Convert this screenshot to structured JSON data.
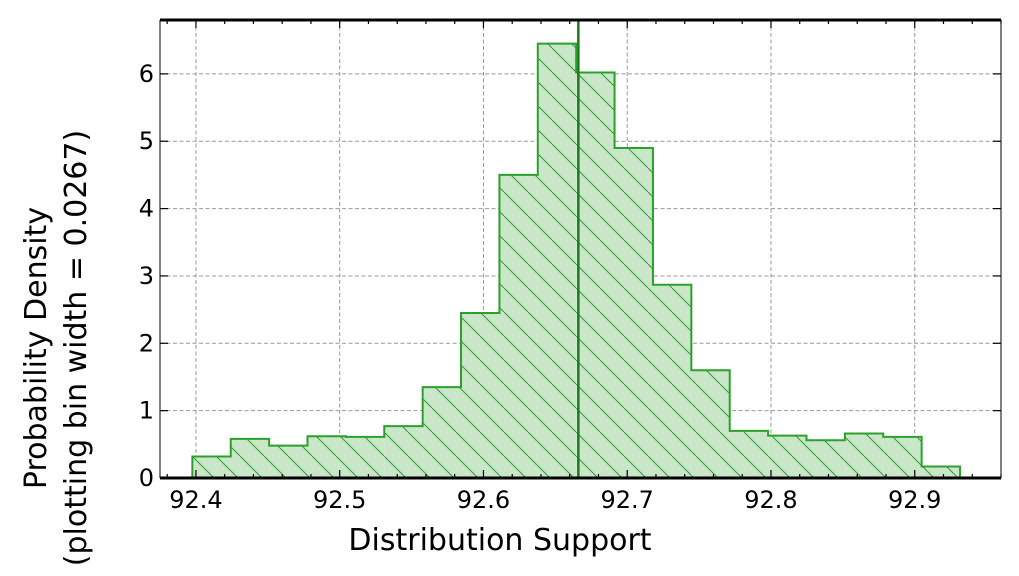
{
  "chart_data": {
    "type": "histogram",
    "title": "",
    "xlabel": "Distribution Support",
    "ylabel_line1": "Probability Density",
    "ylabel_line2": "(plotting bin width = 0.0267)",
    "bin_width": 0.0267,
    "xlim": [
      92.375,
      92.96
    ],
    "ylim": [
      0,
      6.8
    ],
    "xticks": [
      92.4,
      92.5,
      92.6,
      92.7,
      92.8,
      92.9
    ],
    "xtick_labels": [
      "92.4",
      "92.5",
      "92.6",
      "92.7",
      "92.8",
      "92.9"
    ],
    "yticks": [
      0,
      1,
      2,
      3,
      4,
      5,
      6
    ],
    "ytick_labels": [
      "0",
      "1",
      "2",
      "3",
      "4",
      "5",
      "6"
    ],
    "grid": true,
    "bin_edges": [
      92.3975,
      92.4242,
      92.4509,
      92.4776,
      92.5043,
      92.531,
      92.5577,
      92.5844,
      92.6111,
      92.6378,
      92.6645,
      92.6912,
      92.7179,
      92.7446,
      92.7713,
      92.798,
      92.8247,
      92.8514,
      92.8781,
      92.9048,
      92.9315
    ],
    "densities": [
      0.32,
      0.58,
      0.48,
      0.62,
      0.61,
      0.77,
      1.35,
      2.45,
      4.5,
      6.45,
      6.02,
      4.9,
      2.87,
      1.6,
      0.7,
      0.63,
      0.56,
      0.66,
      0.61,
      0.17
    ],
    "vline_x": 92.666,
    "colors": {
      "edge": "#2ca02c",
      "fill": "#c9e6c9",
      "hatch": "#2ca02c",
      "vline": "#1e7a1e",
      "grid": "#999999"
    }
  }
}
